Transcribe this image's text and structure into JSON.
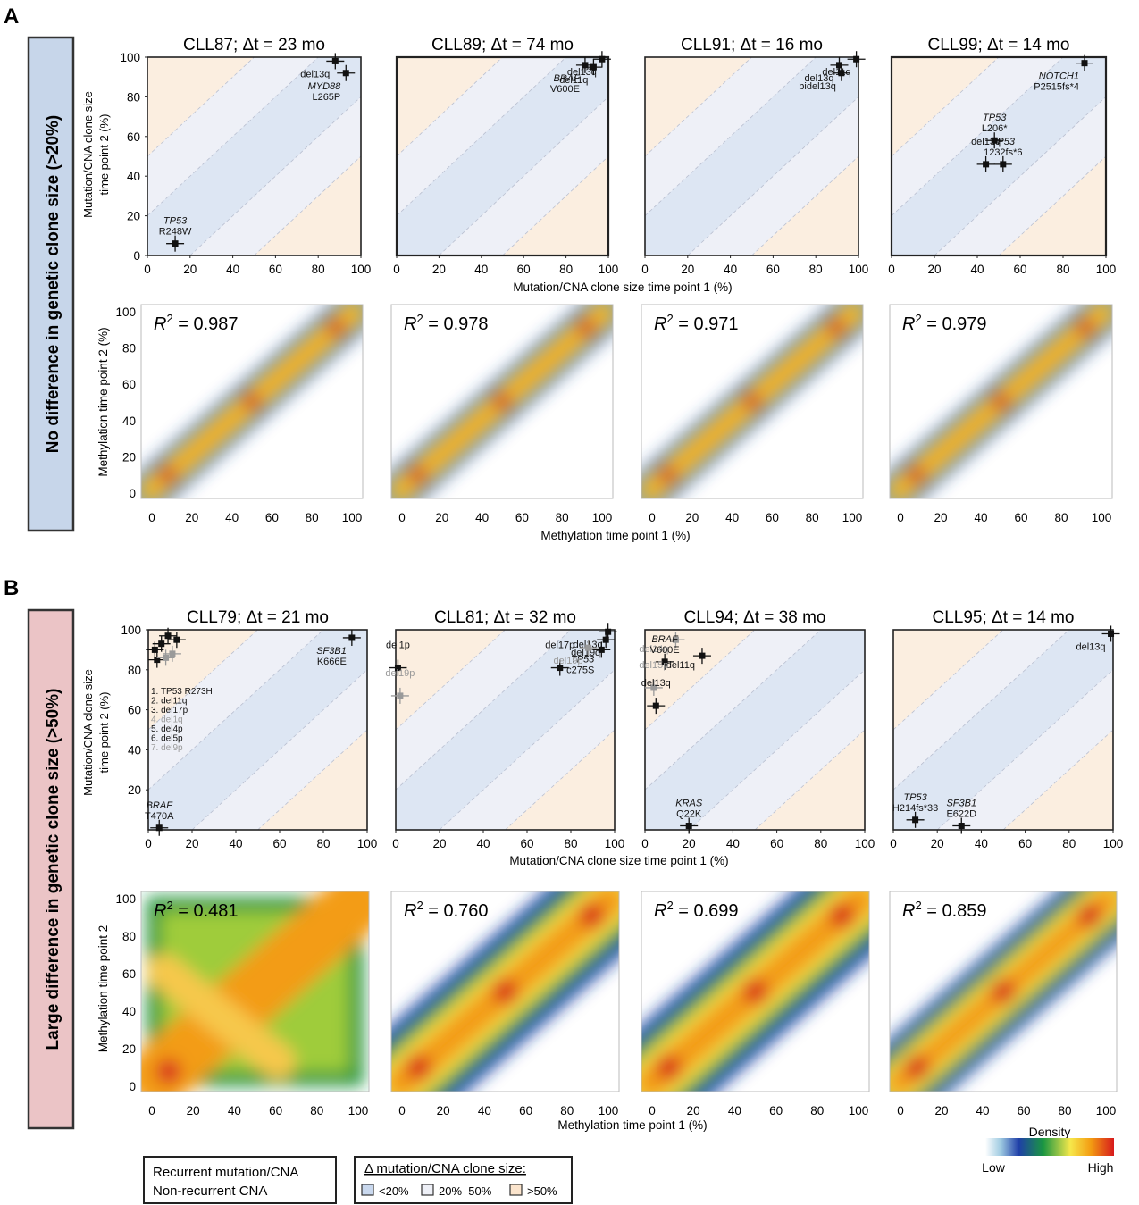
{
  "panel_labels": [
    "A",
    "B"
  ],
  "side_labels": [
    "No difference in genetic clone size (>20%)",
    "Large difference in genetic clone size (>50%)"
  ],
  "colors": {
    "band_lt20": "#dde6f3",
    "band_20_50": "#eef0f7",
    "band_gt50": "#fbeee0",
    "side_A": "#c7d6ea",
    "side_B": "#ebc4c6"
  },
  "axis_text": {
    "clone_y1": "Mutation/CNA clone size",
    "clone_y2": "time point 2 (%)",
    "clone_x": "Mutation/CNA clone size time point 1 (%)",
    "meth_y": "Methylation time point 2 (%)",
    "meth_y_B": "Methylation time point 2",
    "meth_x": "Methylation time point 1 (%)"
  },
  "legend": {
    "box1_line1": "Recurrent mutation/CNA",
    "box1_line2": "Non-recurrent CNA",
    "box2_title": "Δ mutation/CNA clone size:",
    "box2_items": [
      "<20%",
      "20%–50%",
      ">50%"
    ],
    "density_title": "Density",
    "density_low": "Low",
    "density_high": "High"
  },
  "chart_data": [
    {
      "type": "scatter",
      "title": "CLL87; Δt = 23 mo",
      "xlim": [
        0,
        100
      ],
      "ylim": [
        0,
        100
      ],
      "points": [
        {
          "label": "TP53 R248W",
          "x": 13,
          "y": 6
        },
        {
          "label": "del13q",
          "x": 88,
          "y": 98
        },
        {
          "label": "MYD88 L265P",
          "x": 93,
          "y": 92
        }
      ]
    },
    {
      "type": "scatter",
      "title": "CLL89; Δt = 74 mo",
      "xlim": [
        0,
        100
      ],
      "ylim": [
        0,
        100
      ],
      "points": [
        {
          "label": "BRAF V600E",
          "x": 89,
          "y": 96
        },
        {
          "label": "del11q",
          "x": 93,
          "y": 95
        },
        {
          "label": "del13q",
          "x": 97,
          "y": 99
        }
      ]
    },
    {
      "type": "scatter",
      "title": "CLL91; Δt = 16 mo",
      "xlim": [
        0,
        100
      ],
      "ylim": [
        0,
        100
      ],
      "points": [
        {
          "label": "del13q",
          "x": 91,
          "y": 96
        },
        {
          "label": "bidel13q",
          "x": 92,
          "y": 92
        },
        {
          "label": "del11q",
          "x": 99,
          "y": 99
        }
      ]
    },
    {
      "type": "scatter",
      "title": "CLL99; Δt = 14 mo",
      "xlim": [
        0,
        100
      ],
      "ylim": [
        0,
        100
      ],
      "points": [
        {
          "label": "NOTCH1 P2515fs*4",
          "x": 90,
          "y": 97
        },
        {
          "label": "TP53 L206*",
          "x": 48,
          "y": 58
        },
        {
          "label": "del13q",
          "x": 44,
          "y": 46
        },
        {
          "label": "TP53 1232fs*6",
          "x": 52,
          "y": 46
        }
      ]
    },
    {
      "type": "heatmap",
      "title": "R2 = 0.987",
      "r2": 0.987,
      "xlim": [
        0,
        100
      ],
      "ylim": [
        0,
        100
      ]
    },
    {
      "type": "heatmap",
      "title": "R2 = 0.978",
      "r2": 0.978,
      "xlim": [
        0,
        100
      ],
      "ylim": [
        0,
        100
      ]
    },
    {
      "type": "heatmap",
      "title": "R2 = 0.971",
      "r2": 0.971,
      "xlim": [
        0,
        100
      ],
      "ylim": [
        0,
        100
      ]
    },
    {
      "type": "heatmap",
      "title": "R2 = 0.979",
      "r2": 0.979,
      "xlim": [
        0,
        100
      ],
      "ylim": [
        0,
        100
      ]
    },
    {
      "type": "scatter",
      "title": "CLL79; Δt = 21 mo",
      "xlim": [
        0,
        100
      ],
      "ylim": [
        0,
        100
      ],
      "points": [
        {
          "label": "SF3B1 K666E",
          "x": 93,
          "y": 96
        },
        {
          "label": "BRAF T470A",
          "x": 5,
          "y": 1
        },
        {
          "label": "1. TP53 R273H",
          "x": 9,
          "y": 97
        },
        {
          "label": "2. del11q",
          "x": 6,
          "y": 93
        },
        {
          "label": "3. del17p",
          "x": 3,
          "y": 90
        },
        {
          "label": "4. del1q",
          "x": 11,
          "y": 88
        },
        {
          "label": "5. del4p",
          "x": 4,
          "y": 85
        },
        {
          "label": "6. del5p",
          "x": 13,
          "y": 95
        },
        {
          "label": "7. del9p",
          "x": 8,
          "y": 86
        }
      ]
    },
    {
      "type": "scatter",
      "title": "CLL81; Δt = 32 mo",
      "xlim": [
        0,
        100
      ],
      "ylim": [
        0,
        100
      ],
      "points": [
        {
          "label": "del1p",
          "x": 1,
          "y": 81
        },
        {
          "label": "del19p",
          "x": 2,
          "y": 67
        },
        {
          "label": "del17p",
          "x": 75,
          "y": 81
        },
        {
          "label": "TP53 c275S",
          "x": 94,
          "y": 90
        },
        {
          "label": "del13q",
          "x": 97,
          "y": 99
        },
        {
          "label": "del19q",
          "x": 96,
          "y": 95
        },
        {
          "label": "del19p",
          "x": 88,
          "y": 91
        }
      ]
    },
    {
      "type": "scatter",
      "title": "CLL94; Δt = 38 mo",
      "xlim": [
        0,
        100
      ],
      "ylim": [
        0,
        100
      ],
      "points": [
        {
          "label": "del14q",
          "x": 14,
          "y": 95
        },
        {
          "label": "del11q",
          "x": 26,
          "y": 87
        },
        {
          "label": "BRAF V600E",
          "x": 9,
          "y": 84
        },
        {
          "label": "del15p",
          "x": 4,
          "y": 71
        },
        {
          "label": "del13q",
          "x": 5,
          "y": 62
        },
        {
          "label": "KRAS Q22K",
          "x": 20,
          "y": 2
        }
      ]
    },
    {
      "type": "scatter",
      "title": "CLL95; Δt = 14 mo",
      "xlim": [
        0,
        100
      ],
      "ylim": [
        0,
        100
      ],
      "points": [
        {
          "label": "del13q",
          "x": 99,
          "y": 98
        },
        {
          "label": "TP53 H214fs*33",
          "x": 10,
          "y": 5
        },
        {
          "label": "SF3B1 E622D",
          "x": 31,
          "y": 2
        }
      ]
    },
    {
      "type": "heatmap",
      "title": "R2 = 0.481",
      "r2": 0.481,
      "xlim": [
        0,
        100
      ],
      "ylim": [
        0,
        100
      ]
    },
    {
      "type": "heatmap",
      "title": "R2 = 0.760",
      "r2": 0.76,
      "xlim": [
        0,
        100
      ],
      "ylim": [
        0,
        100
      ]
    },
    {
      "type": "heatmap",
      "title": "R2 = 0.699",
      "r2": 0.699,
      "xlim": [
        0,
        100
      ],
      "ylim": [
        0,
        100
      ]
    },
    {
      "type": "heatmap",
      "title": "R2 = 0.859",
      "r2": 0.859,
      "xlim": [
        0,
        100
      ],
      "ylim": [
        0,
        100
      ]
    }
  ]
}
